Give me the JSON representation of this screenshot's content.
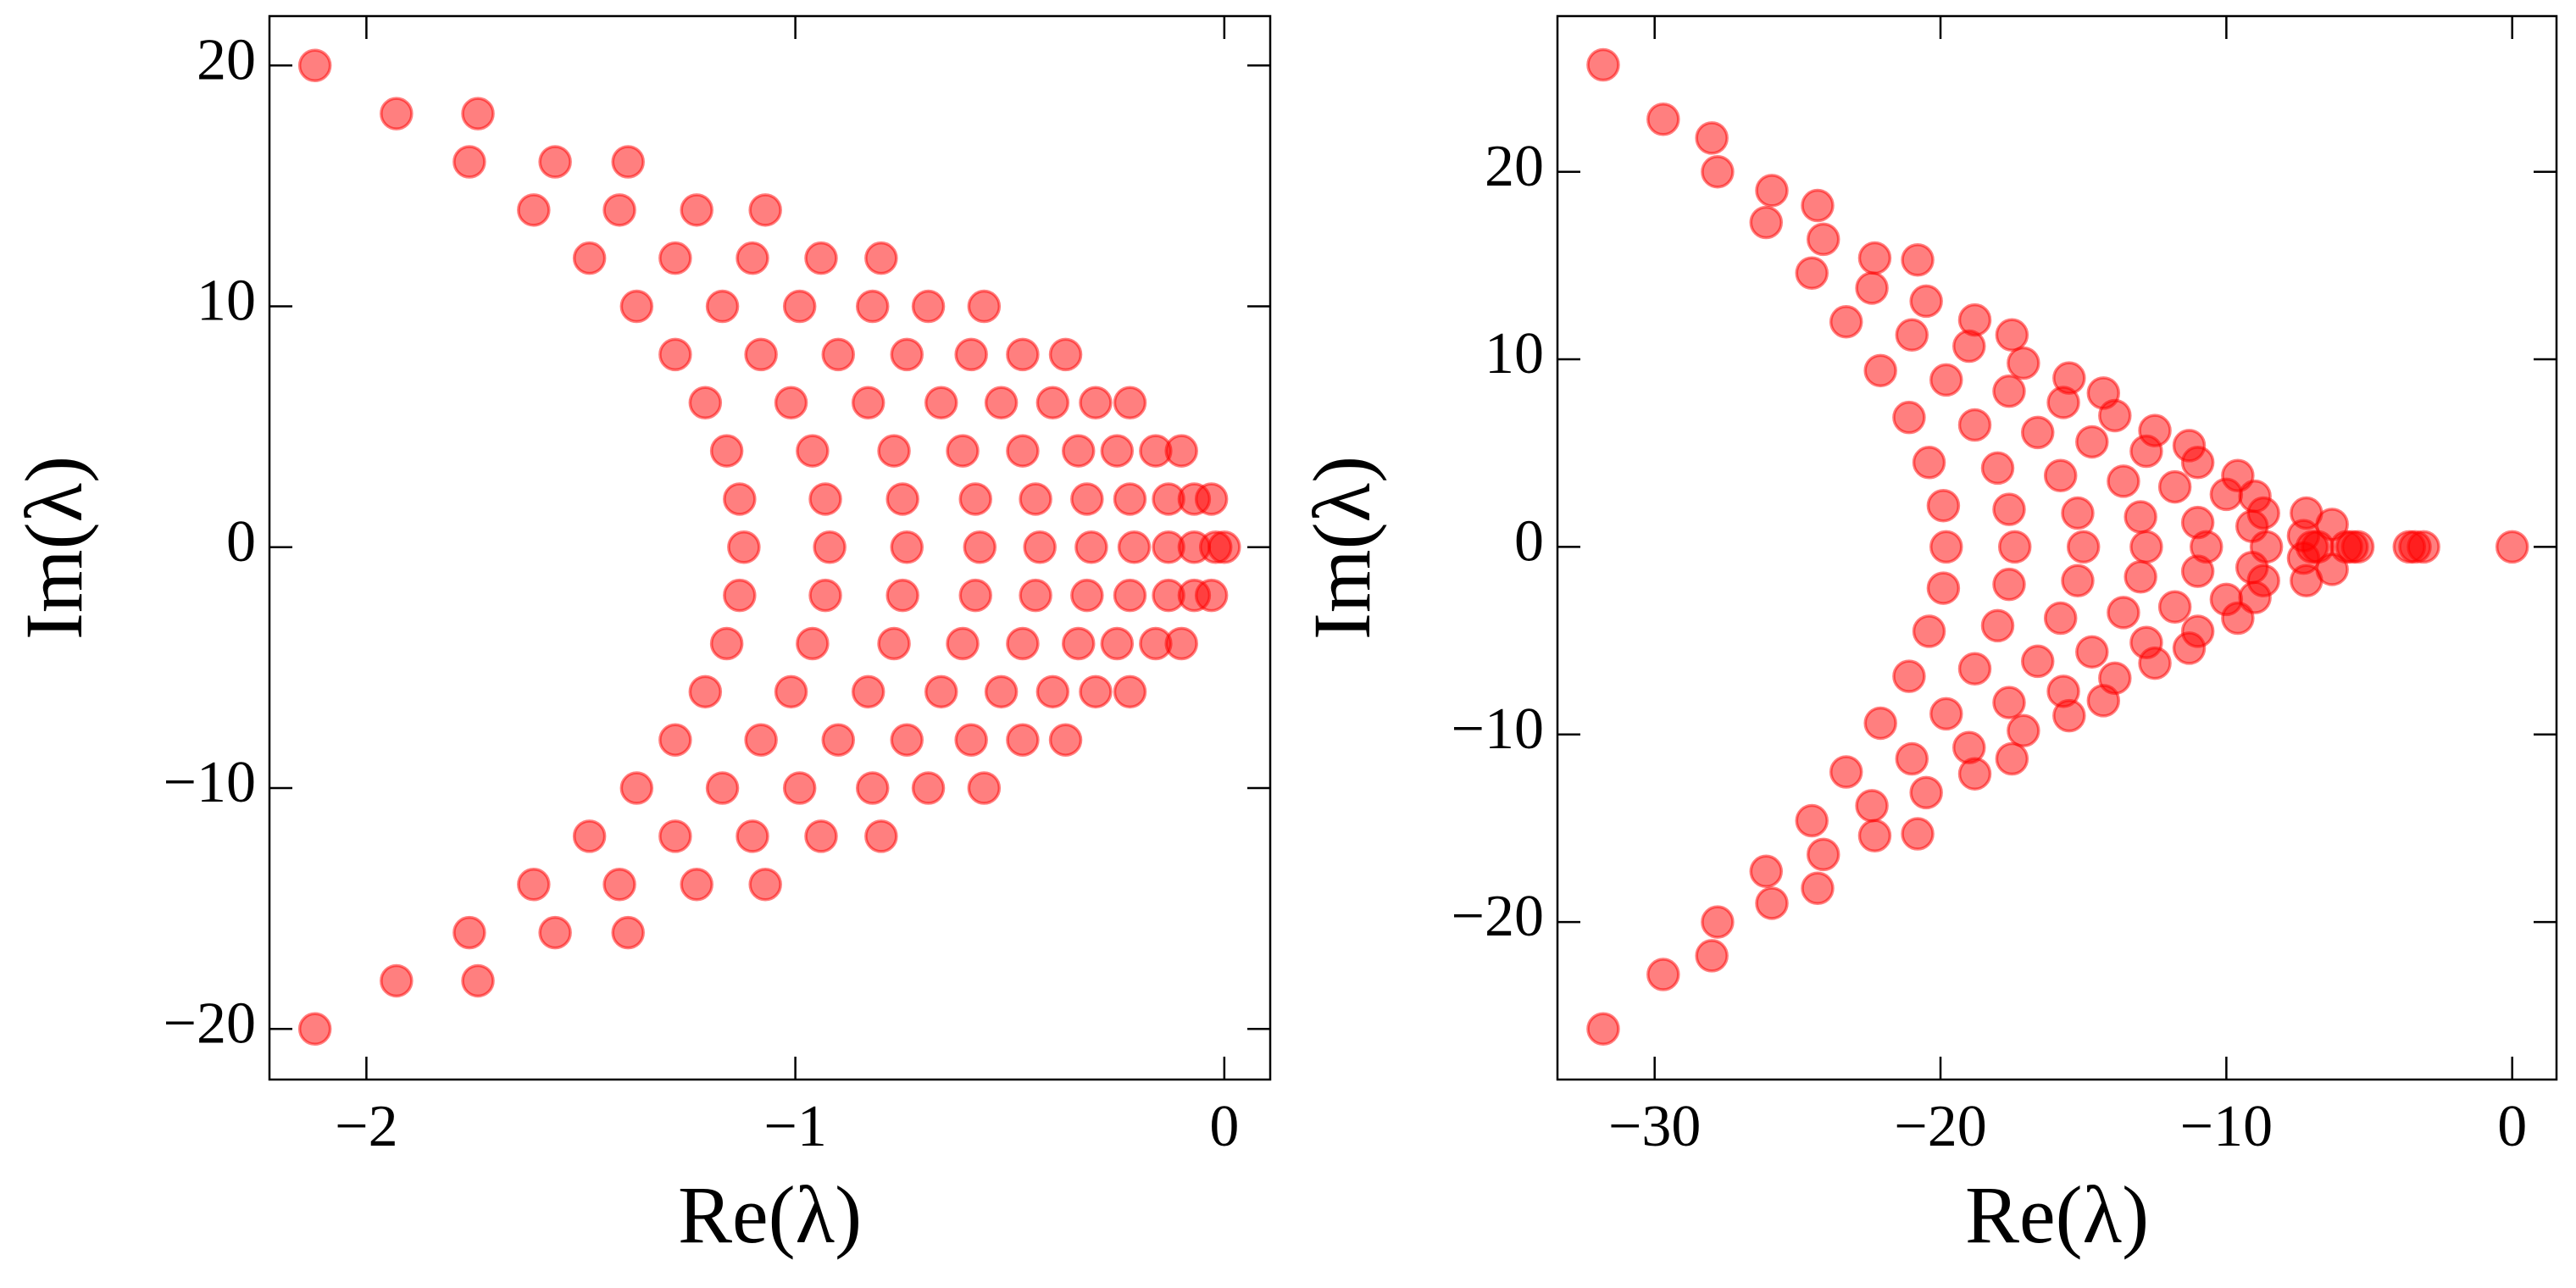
{
  "chart_data": [
    {
      "type": "scatter",
      "xlabel": "Re(λ)",
      "ylabel": "Im(λ)",
      "xlim": [
        -2.226,
        0.107
      ],
      "ylim": [
        -22.1,
        22.05
      ],
      "xticks": [
        {
          "value": -2,
          "label": "−2"
        },
        {
          "value": -1,
          "label": "−1"
        },
        0
      ],
      "yticks": [
        {
          "value": -20,
          "label": "−20"
        },
        {
          "value": -10,
          "label": "−10"
        },
        0,
        10,
        20
      ],
      "color": "#ff0000",
      "x": [
        -2.12,
        -2.12,
        -1.93,
        -1.74,
        -1.93,
        -1.74,
        -1.76,
        -1.56,
        -1.39,
        -1.76,
        -1.56,
        -1.39,
        -1.61,
        -1.41,
        -1.23,
        -1.07,
        -1.61,
        -1.41,
        -1.23,
        -1.07,
        -1.48,
        -1.28,
        -1.1,
        -0.94,
        -0.8,
        -1.48,
        -1.28,
        -1.1,
        -0.94,
        -0.8,
        -1.37,
        -1.17,
        -0.99,
        -0.82,
        -0.69,
        -0.56,
        -1.37,
        -1.17,
        -0.99,
        -0.82,
        -0.69,
        -0.56,
        -1.28,
        -1.08,
        -0.9,
        -0.74,
        -0.59,
        -0.47,
        -0.37,
        -1.28,
        -1.08,
        -0.9,
        -0.74,
        -0.59,
        -0.47,
        -0.37,
        -1.21,
        -1.01,
        -0.83,
        -0.66,
        -0.52,
        -0.4,
        -0.3,
        -0.22,
        -1.21,
        -1.01,
        -0.83,
        -0.66,
        -0.52,
        -0.4,
        -0.3,
        -0.22,
        -1.16,
        -0.96,
        -0.77,
        -0.61,
        -0.47,
        -0.34,
        -0.25,
        -0.16,
        -0.1,
        -1.16,
        -0.96,
        -0.77,
        -0.61,
        -0.47,
        -0.34,
        -0.25,
        -0.16,
        -0.1,
        -1.13,
        -0.93,
        -0.75,
        -0.58,
        -0.44,
        -0.32,
        -0.22,
        -0.13,
        -0.07,
        -0.03,
        -1.13,
        -0.93,
        -0.75,
        -0.58,
        -0.44,
        -0.32,
        -0.22,
        -0.13,
        -0.07,
        -0.03,
        -1.12,
        -0.92,
        -0.74,
        -0.57,
        -0.43,
        -0.31,
        -0.21,
        -0.13,
        -0.07,
        -0.02,
        0
      ],
      "y": [
        20,
        -20,
        18,
        18,
        -18,
        -18,
        16,
        16,
        16,
        -16,
        -16,
        -16,
        14,
        14,
        14,
        14,
        -14,
        -14,
        -14,
        -14,
        12,
        12,
        12,
        12,
        12,
        -12,
        -12,
        -12,
        -12,
        -12,
        10,
        10,
        10,
        10,
        10,
        10,
        -10,
        -10,
        -10,
        -10,
        -10,
        -10,
        8,
        8,
        8,
        8,
        8,
        8,
        8,
        -8,
        -8,
        -8,
        -8,
        -8,
        -8,
        -8,
        6,
        6,
        6,
        6,
        6,
        6,
        6,
        6,
        -6,
        -6,
        -6,
        -6,
        -6,
        -6,
        -6,
        -6,
        4,
        4,
        4,
        4,
        4,
        4,
        4,
        4,
        4,
        -4,
        -4,
        -4,
        -4,
        -4,
        -4,
        -4,
        -4,
        -4,
        2,
        2,
        2,
        2,
        2,
        2,
        2,
        2,
        2,
        2,
        -2,
        -2,
        -2,
        -2,
        -2,
        -2,
        -2,
        -2,
        -2,
        -2,
        0,
        0,
        0,
        0,
        0,
        0,
        0,
        0,
        0,
        0,
        0
      ]
    },
    {
      "type": "scatter",
      "xlabel": "Re(λ)",
      "ylabel": "Im(λ)",
      "xlim": [
        -33.4,
        1.55
      ],
      "ylim": [
        -28.4,
        28.3
      ],
      "xticks": [
        {
          "value": -30,
          "label": "−30"
        },
        {
          "value": -20,
          "label": "−20"
        },
        {
          "value": -10,
          "label": "−10"
        },
        0
      ],
      "yticks": [
        {
          "value": -20,
          "label": "−20"
        },
        {
          "value": -10,
          "label": "−10"
        },
        0,
        10,
        20
      ],
      "color": "#ff0000",
      "x": [
        -31.8,
        -29.7,
        -28.0,
        -27.8,
        -25.9,
        -26.1,
        -24.3,
        -24.1,
        -24.5,
        -23.3,
        -22.3,
        -22.4,
        -22.1,
        -20.8,
        -20.5,
        -21.0,
        -21.1,
        -20.4,
        -19.9,
        -19.8,
        -18.8,
        -19.0,
        -18.8,
        -17.5,
        -17.1,
        -17.6,
        -18.0,
        -17.6,
        -16.6,
        -15.5,
        -15.7,
        -15.8,
        -15.2,
        -14.3,
        -13.9,
        -14.7,
        -13.6,
        -13.0,
        -12.5,
        -12.8,
        -11.8,
        -11.3,
        -11.0,
        -11.0,
        -10.0,
        -9.6,
        -9.1,
        -9.0,
        -8.7,
        -7.2,
        -7.3,
        -6.3,
        -31.8,
        -29.7,
        -28.0,
        -27.8,
        -25.9,
        -26.1,
        -24.3,
        -24.1,
        -24.5,
        -23.3,
        -22.3,
        -22.4,
        -22.1,
        -20.8,
        -20.5,
        -21.0,
        -21.1,
        -20.4,
        -19.9,
        -19.8,
        -18.8,
        -19.0,
        -18.8,
        -17.5,
        -17.1,
        -17.6,
        -18.0,
        -17.6,
        -16.6,
        -15.5,
        -15.7,
        -15.8,
        -15.2,
        -14.3,
        -13.9,
        -14.7,
        -13.6,
        -13.0,
        -12.5,
        -12.8,
        -11.8,
        -11.3,
        -11.0,
        -11.0,
        -10.0,
        -9.6,
        -9.1,
        -9.0,
        -8.7,
        -7.2,
        -7.3,
        -6.3,
        -19.8,
        -17.4,
        -15.0,
        -12.8,
        -10.7,
        -8.6,
        -7.0,
        -6.8,
        -5.8,
        -5.6,
        -5.4,
        -3.6,
        -3.4,
        -3.1,
        0
      ],
      "y": [
        25.7,
        22.8,
        21.8,
        20.0,
        19.0,
        17.3,
        18.2,
        16.4,
        14.6,
        12.0,
        15.4,
        13.8,
        9.4,
        15.3,
        13.1,
        11.3,
        6.9,
        4.5,
        2.2,
        8.9,
        12.1,
        10.7,
        6.5,
        11.3,
        9.8,
        8.3,
        4.2,
        2.0,
        6.1,
        9.0,
        7.7,
        3.8,
        1.8,
        8.2,
        7.0,
        5.6,
        3.5,
        1.6,
        6.2,
        5.1,
        3.2,
        5.4,
        4.5,
        1.3,
        2.8,
        3.8,
        1.1,
        2.7,
        1.8,
        1.8,
        0.6,
        1.2,
        -25.7,
        -22.8,
        -21.8,
        -20.0,
        -19.0,
        -17.3,
        -18.2,
        -16.4,
        -14.6,
        -12.0,
        -15.4,
        -13.8,
        -9.4,
        -15.3,
        -13.1,
        -11.3,
        -6.9,
        -4.5,
        -2.2,
        -8.9,
        -12.1,
        -10.7,
        -6.5,
        -11.3,
        -9.8,
        -8.3,
        -4.2,
        -2.0,
        -6.1,
        -9.0,
        -7.7,
        -3.8,
        -1.8,
        -8.2,
        -7.0,
        -5.6,
        -3.5,
        -1.6,
        -6.2,
        -5.1,
        -3.2,
        -5.4,
        -4.5,
        -1.3,
        -2.8,
        -3.8,
        -1.1,
        -2.7,
        -1.8,
        -1.8,
        -0.6,
        -1.2,
        0,
        0,
        0,
        0,
        0,
        0,
        0,
        0,
        0,
        0,
        0,
        0,
        0,
        0,
        0
      ]
    }
  ]
}
